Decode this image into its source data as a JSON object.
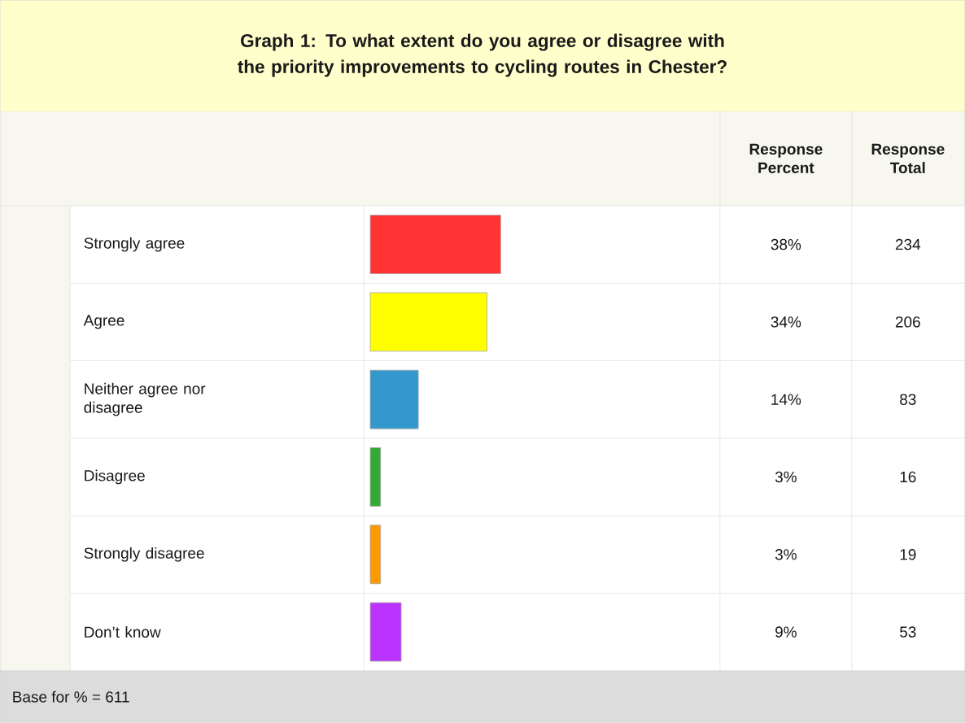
{
  "chart_data": {
    "type": "bar",
    "orientation": "horizontal",
    "title": "Graph 1: To what extent do you agree or disagree with the priority improvements to cycling routes in Chester?",
    "categories": [
      "Strongly agree",
      "Agree",
      "Neither agree nor disagree",
      "Disagree",
      "Strongly disagree",
      "Don’t know"
    ],
    "values": [
      38,
      34,
      14,
      3,
      3,
      9
    ],
    "colors": [
      "#ff3333",
      "#ffff00",
      "#3399cc",
      "#33aa33",
      "#ff9900",
      "#bb33ff"
    ],
    "value_labels": [
      "38%",
      "34%",
      "14%",
      "3%",
      "3%",
      "9%"
    ],
    "annotations": [
      "Response Percent",
      "Response Total",
      "Base for % = 611",
      "234",
      "206",
      "83",
      "16",
      "19",
      "53"
    ]
  }
}
